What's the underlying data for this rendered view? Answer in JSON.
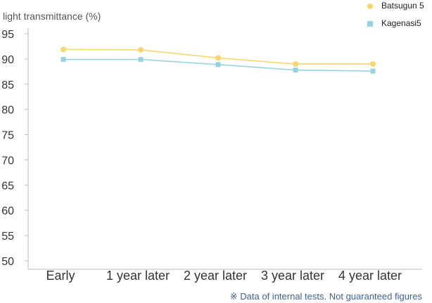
{
  "chart_data": {
    "type": "line",
    "ylabel": "light transmittance (%)",
    "xlabel": "",
    "categories": [
      "Early",
      "1 year later",
      "2 year later",
      "3 year later",
      "4 year later"
    ],
    "yticks": [
      50,
      55,
      60,
      65,
      70,
      75,
      80,
      85,
      90,
      95
    ],
    "ylim": [
      50,
      95
    ],
    "grid": false,
    "legend_position": "top-right",
    "series": [
      {
        "name": "Batsugun 5",
        "values": [
          91.9,
          91.8,
          90.2,
          89.0,
          89.0
        ],
        "color": "#f9d56e",
        "marker": "circle"
      },
      {
        "name": "Kagenasi5",
        "values": [
          89.9,
          89.9,
          88.9,
          87.8,
          87.6
        ],
        "color": "#96d3e0",
        "marker": "square"
      }
    ],
    "footnote": "※ Data of internal tests. Not guaranteed figures"
  }
}
